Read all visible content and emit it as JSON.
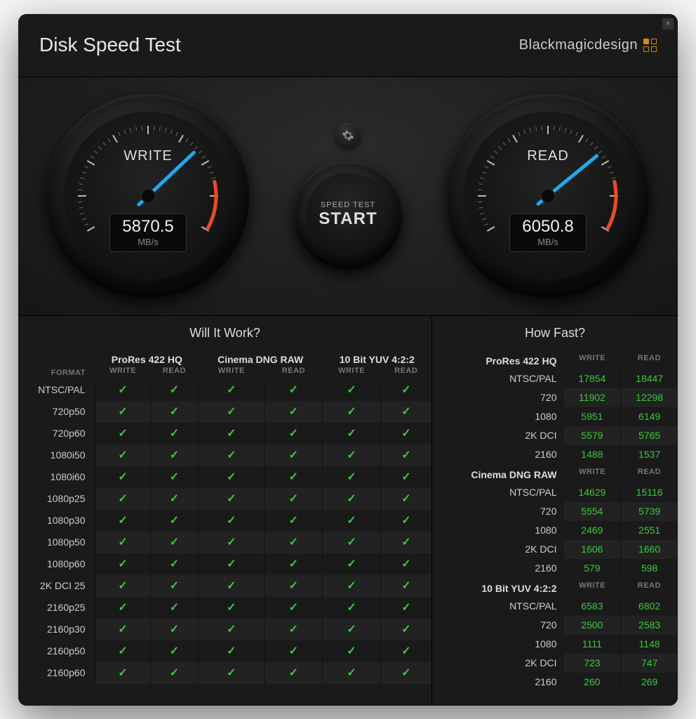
{
  "header": {
    "title": "Disk Speed Test",
    "brand": "Blackmagicdesign"
  },
  "gauges": {
    "write": {
      "label": "WRITE",
      "value": "5870.5",
      "unit": "MB/s",
      "angle_deg": 125,
      "needle_color": "#1eaaf1",
      "redzone_color": "#e74c2a",
      "tick_color": "#cccccc"
    },
    "read": {
      "label": "READ",
      "value": "6050.8",
      "unit": "MB/s",
      "angle_deg": 128,
      "needle_color": "#1eaaf1",
      "redzone_color": "#e74c2a",
      "tick_color": "#cccccc"
    }
  },
  "start": {
    "line1": "SPEED TEST",
    "line2": "START"
  },
  "will_it_work": {
    "title": "Will It Work?",
    "format_header": "FORMAT",
    "subheaders": [
      "WRITE",
      "READ"
    ],
    "groups": [
      "ProRes 422 HQ",
      "Cinema DNG RAW",
      "10 Bit YUV 4:2:2"
    ],
    "formats": [
      "NTSC/PAL",
      "720p50",
      "720p60",
      "1080i50",
      "1080i60",
      "1080p25",
      "1080p30",
      "1080p50",
      "1080p60",
      "2K DCI 25",
      "2160p25",
      "2160p30",
      "2160p50",
      "2160p60"
    ],
    "check_color": "#3cc93c"
  },
  "how_fast": {
    "title": "How Fast?",
    "subheaders": [
      "WRITE",
      "READ"
    ],
    "value_color": "#3cc93c",
    "sections": [
      {
        "name": "ProRes 422 HQ",
        "rows": [
          {
            "fmt": "NTSC/PAL",
            "w": "17854",
            "r": "18447"
          },
          {
            "fmt": "720",
            "w": "11902",
            "r": "12298"
          },
          {
            "fmt": "1080",
            "w": "5951",
            "r": "6149"
          },
          {
            "fmt": "2K DCI",
            "w": "5579",
            "r": "5765"
          },
          {
            "fmt": "2160",
            "w": "1488",
            "r": "1537"
          }
        ]
      },
      {
        "name": "Cinema DNG RAW",
        "rows": [
          {
            "fmt": "NTSC/PAL",
            "w": "14629",
            "r": "15116"
          },
          {
            "fmt": "720",
            "w": "5554",
            "r": "5739"
          },
          {
            "fmt": "1080",
            "w": "2469",
            "r": "2551"
          },
          {
            "fmt": "2K DCI",
            "w": "1606",
            "r": "1660"
          },
          {
            "fmt": "2160",
            "w": "579",
            "r": "598"
          }
        ]
      },
      {
        "name": "10 Bit YUV 4:2:2",
        "rows": [
          {
            "fmt": "NTSC/PAL",
            "w": "6583",
            "r": "6802"
          },
          {
            "fmt": "720",
            "w": "2500",
            "r": "2583"
          },
          {
            "fmt": "1080",
            "w": "1111",
            "r": "1148"
          },
          {
            "fmt": "2K DCI",
            "w": "723",
            "r": "747"
          },
          {
            "fmt": "2160",
            "w": "260",
            "r": "269"
          }
        ]
      }
    ]
  },
  "colors": {
    "bg": "#1a1a1a",
    "row_alt": "#222222",
    "text": "#dddddd",
    "muted": "#777777"
  }
}
